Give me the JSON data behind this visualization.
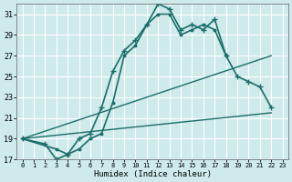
{
  "xlabel": "Humidex (Indice chaleur)",
  "bg_color": "#ceeaea",
  "grid_color": "#ffffff",
  "line_color": "#1a6e6a",
  "xlim": [
    -0.5,
    23.5
  ],
  "ylim": [
    17,
    32
  ],
  "xticks": [
    0,
    1,
    2,
    3,
    4,
    5,
    6,
    7,
    8,
    9,
    10,
    11,
    12,
    13,
    14,
    15,
    16,
    17,
    18,
    19,
    20,
    21,
    22,
    23
  ],
  "yticks": [
    17,
    19,
    21,
    23,
    25,
    27,
    29,
    31
  ],
  "series": [
    {
      "x": [
        0,
        2,
        3,
        4,
        5,
        6,
        7,
        8,
        9,
        10,
        11,
        12,
        13,
        14,
        15,
        16,
        17,
        18,
        19,
        20,
        21,
        22
      ],
      "y": [
        19,
        18.5,
        17,
        17.5,
        19,
        19.5,
        22,
        25.5,
        27.5,
        28.5,
        30,
        32,
        31.5,
        29.5,
        30,
        29.5,
        30.5,
        27,
        25,
        24.5,
        24,
        22
      ],
      "marker": "+",
      "linewidth": 1.2,
      "markersize": 4,
      "markeredgewidth": 1.0
    },
    {
      "x": [
        0,
        3,
        4,
        5,
        6,
        7,
        8,
        9,
        10,
        11,
        12,
        13,
        14,
        15,
        16,
        17,
        18
      ],
      "y": [
        19,
        18,
        17.5,
        18,
        19,
        19.5,
        22.5,
        27,
        28,
        30,
        31,
        31,
        29,
        29.5,
        30,
        29.5,
        27
      ],
      "marker": ".",
      "linewidth": 1.2,
      "markersize": 4,
      "markeredgewidth": 0.8
    },
    {
      "x": [
        0,
        22
      ],
      "y": [
        19,
        27
      ],
      "marker": null,
      "linewidth": 1.0
    },
    {
      "x": [
        0,
        22
      ],
      "y": [
        19,
        21.5
      ],
      "marker": null,
      "linewidth": 1.0
    }
  ]
}
